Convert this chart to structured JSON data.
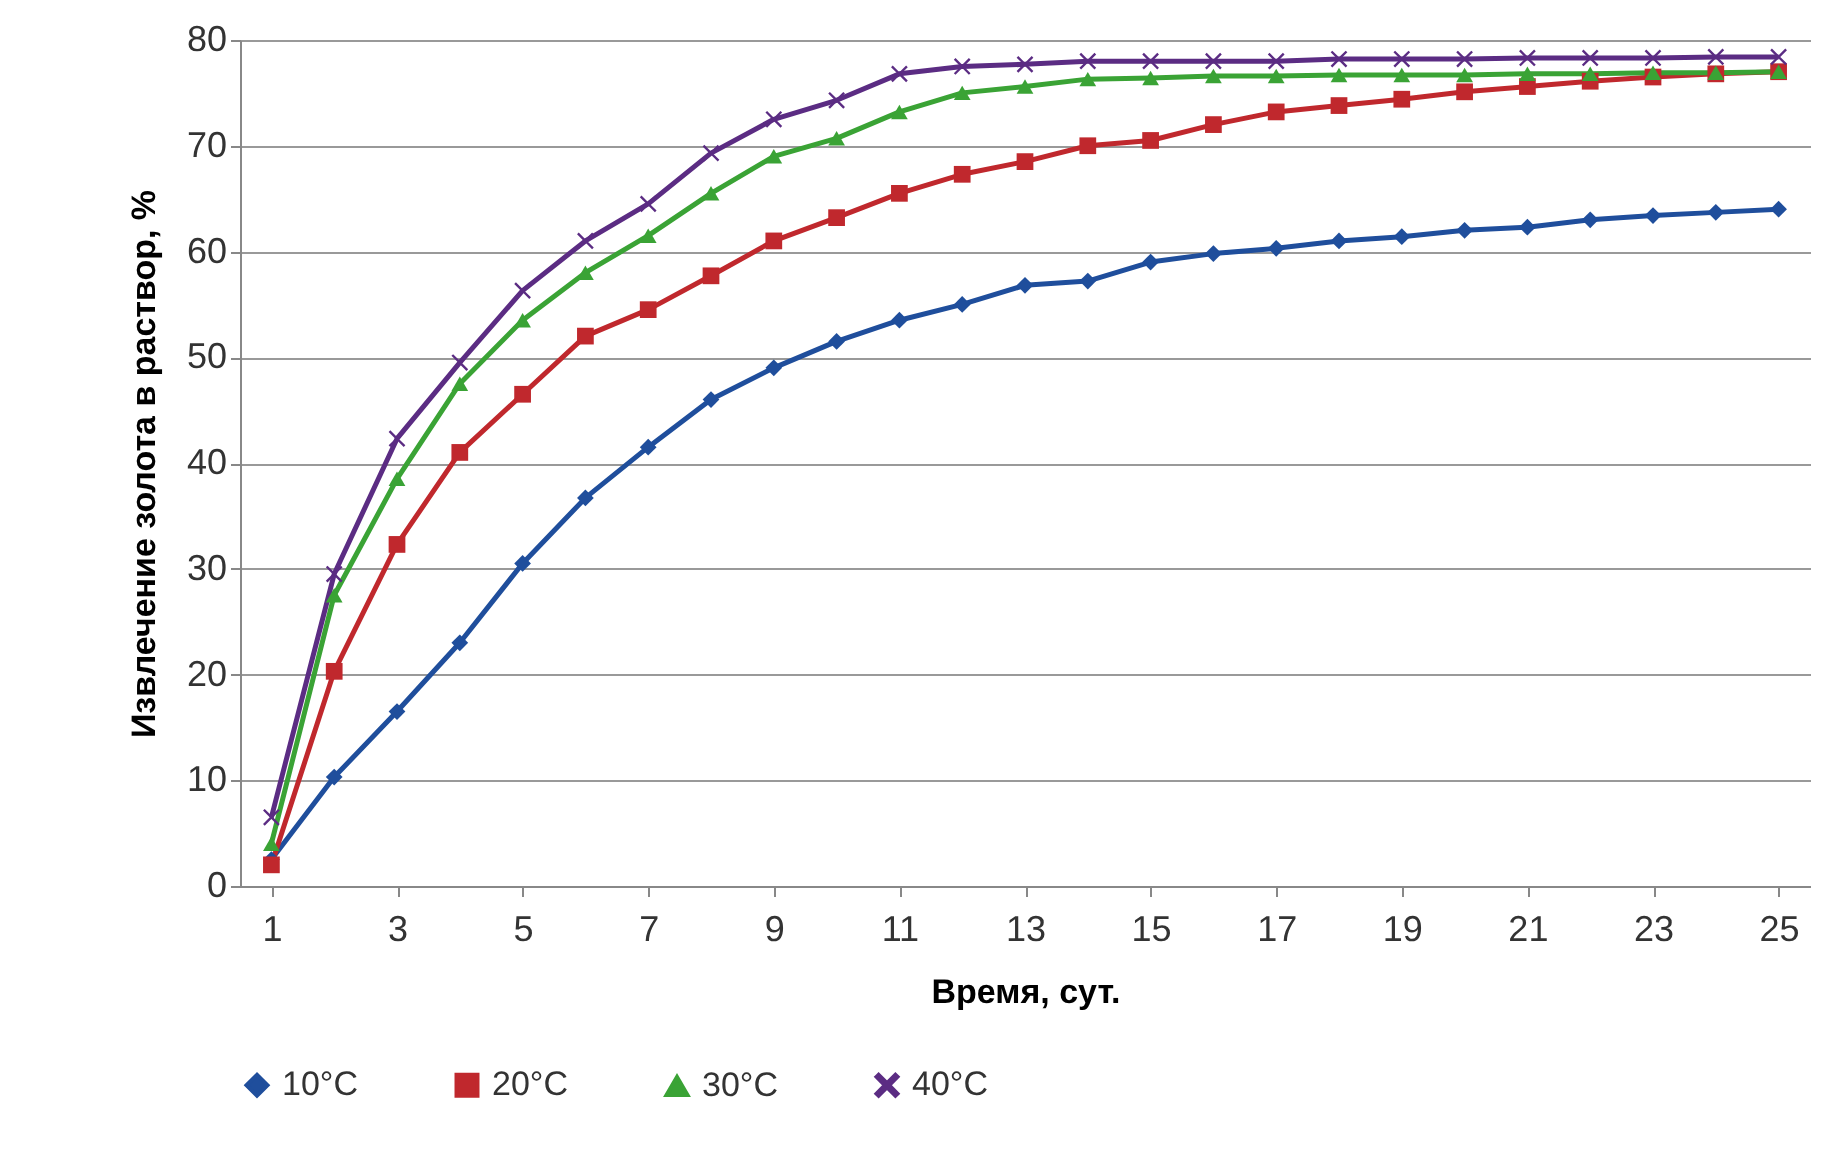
{
  "chart_data": {
    "type": "line",
    "xlabel": "Время, сут.",
    "ylabel": "Извлечение золота в раствор, %",
    "x": [
      1,
      2,
      3,
      4,
      5,
      6,
      7,
      8,
      9,
      10,
      11,
      12,
      13,
      14,
      15,
      16,
      17,
      18,
      19,
      20,
      21,
      22,
      23,
      24,
      25
    ],
    "xlim": [
      0.5,
      25.5
    ],
    "xticks": [
      1,
      3,
      5,
      7,
      9,
      11,
      13,
      15,
      17,
      19,
      21,
      23,
      25
    ],
    "ylim": [
      0,
      80
    ],
    "yticks": [
      0,
      10,
      20,
      30,
      40,
      50,
      60,
      70,
      80
    ],
    "grid": "y",
    "legend": "bottom",
    "series": [
      {
        "name": "10°C",
        "color": "#1f4e9c",
        "marker": "diamond",
        "values": [
          2.5,
          10.3,
          16.5,
          23,
          30.5,
          36.7,
          41.5,
          46,
          49,
          51.5,
          53.5,
          55,
          56.8,
          57.2,
          59,
          59.8,
          60.3,
          61,
          61.4,
          62,
          62.3,
          63,
          63.4,
          63.7,
          64
        ]
      },
      {
        "name": "20°C",
        "color": "#c0282d",
        "marker": "square",
        "values": [
          2,
          20.3,
          32.3,
          41,
          46.5,
          52,
          54.5,
          57.7,
          61,
          63.2,
          65.5,
          67.3,
          68.5,
          70,
          70.5,
          72,
          73.2,
          73.8,
          74.4,
          75.1,
          75.6,
          76.1,
          76.5,
          76.8,
          77
        ]
      },
      {
        "name": "30°C",
        "color": "#3aa335",
        "marker": "triangle",
        "values": [
          4,
          27.5,
          38.5,
          47.5,
          53.5,
          58,
          61.5,
          65.5,
          69,
          70.7,
          73.2,
          75,
          75.6,
          76.3,
          76.4,
          76.6,
          76.6,
          76.7,
          76.7,
          76.7,
          76.8,
          76.8,
          76.9,
          76.9,
          77
        ]
      },
      {
        "name": "40°C",
        "color": "#5b2c83",
        "marker": "cross",
        "values": [
          6.5,
          29.5,
          42.3,
          49.5,
          56.3,
          61,
          64.5,
          69.3,
          72.5,
          74.3,
          76.8,
          77.5,
          77.7,
          78,
          78,
          78,
          78,
          78.2,
          78.2,
          78.2,
          78.3,
          78.3,
          78.3,
          78.4,
          78.4
        ]
      }
    ]
  }
}
